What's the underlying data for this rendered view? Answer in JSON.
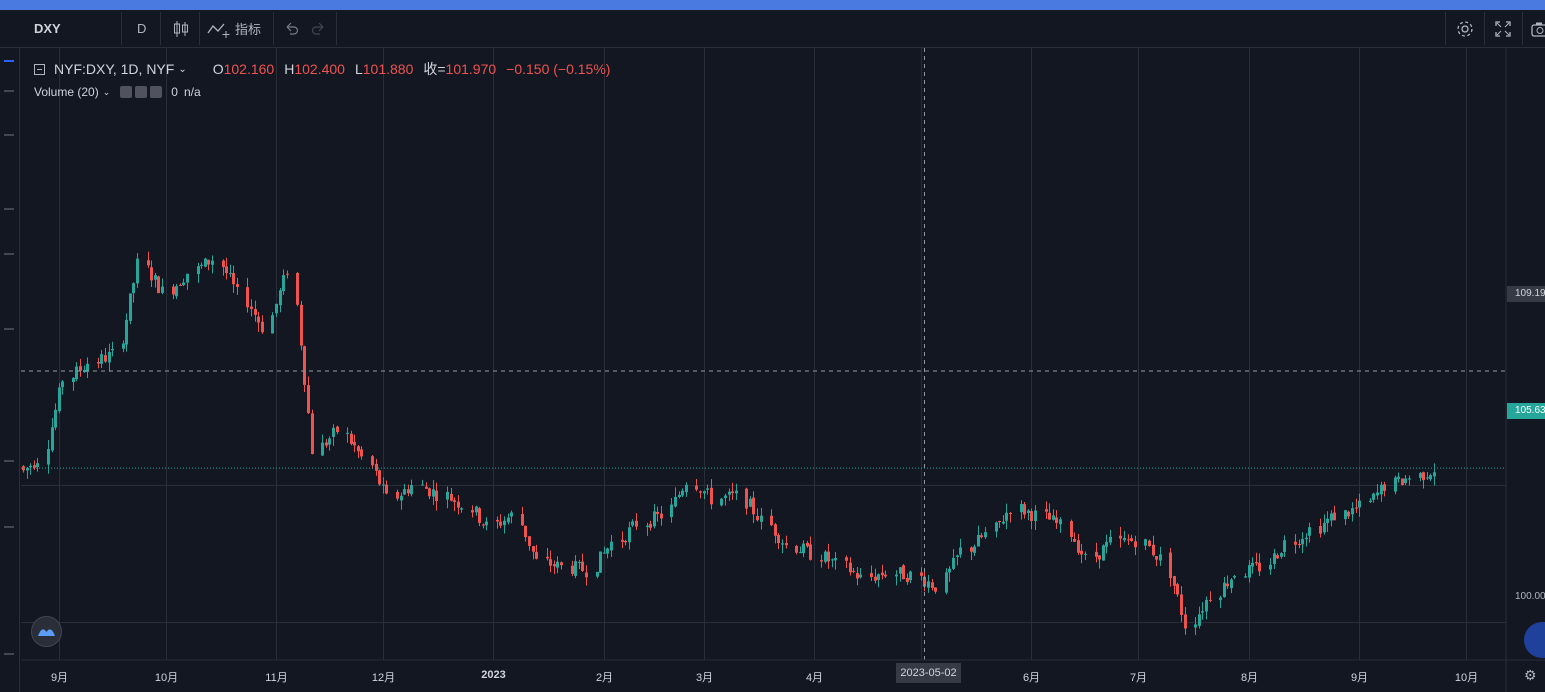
{
  "toolbar": {
    "symbol": "DXY",
    "interval": "D",
    "indicators_label": "指标"
  },
  "legend": {
    "symbol_desc": "NYF:DXY, 1D, NYF",
    "o_label": "O",
    "o_value": "102.160",
    "h_label": "H",
    "h_value": "102.400",
    "l_label": "L",
    "l_value": "101.880",
    "c_label": "收=",
    "c_value": "101.970",
    "change": "−0.150 (−0.15%)"
  },
  "volume": {
    "label": "Volume (20)",
    "value": "0",
    "na": "n/a"
  },
  "price_axis": {
    "crosshair_price": "109.19",
    "last_price": "105.63",
    "level_100": "100.00"
  },
  "time_axis": {
    "labels": [
      "9月",
      "10月",
      "11月",
      "12月",
      "2023",
      "2月",
      "3月",
      "4月",
      "5月",
      "6月",
      "7月",
      "8月",
      "9月",
      "10月"
    ],
    "crosshair_date": "2023-05-02"
  },
  "colors": {
    "background": "#131722",
    "up": "#26a69a",
    "down": "#ef5350",
    "grid": "#2a2e39",
    "accent": "#2962ff"
  },
  "icons": [
    "candles-icon",
    "indicators-icon",
    "undo-icon",
    "redo-icon",
    "settings-icon",
    "fullscreen-icon",
    "camera-icon",
    "logo-icon",
    "gear-icon"
  ],
  "chart_data": {
    "type": "candlestick",
    "ylim": [
      98.6,
      118.9
    ],
    "x": [
      "2022-08-22",
      "2022-08-29",
      "2022-09-05",
      "2022-09-12",
      "2022-09-19",
      "2022-09-26",
      "2022-10-03",
      "2022-10-10",
      "2022-10-17",
      "2022-10-24",
      "2022-10-31",
      "2022-11-07",
      "2022-11-14",
      "2022-11-21",
      "2022-11-28",
      "2022-12-05",
      "2022-12-12",
      "2022-12-19",
      "2022-12-26",
      "2023-01-02",
      "2023-01-09",
      "2023-01-16",
      "2023-01-23",
      "2023-01-30",
      "2023-02-06",
      "2023-02-13",
      "2023-02-20",
      "2023-02-27",
      "2023-03-06",
      "2023-03-13",
      "2023-03-20",
      "2023-03-27",
      "2023-04-03",
      "2023-04-10",
      "2023-04-17",
      "2023-04-24",
      "2023-05-01",
      "2023-05-08",
      "2023-05-15",
      "2023-05-22",
      "2023-05-29",
      "2023-06-05",
      "2023-06-12",
      "2023-06-19",
      "2023-06-26",
      "2023-07-03",
      "2023-07-10",
      "2023-07-17",
      "2023-07-24",
      "2023-07-31",
      "2023-08-07",
      "2023-08-14",
      "2023-08-21",
      "2023-08-28",
      "2023-09-04",
      "2023-09-11",
      "2023-09-18"
    ],
    "close": [
      106.0,
      108.9,
      109.5,
      109.8,
      113.1,
      112.1,
      112.8,
      113.3,
      112.0,
      110.8,
      112.9,
      106.3,
      107.0,
      106.0,
      104.5,
      105.0,
      104.7,
      104.3,
      103.5,
      103.9,
      102.2,
      102.0,
      101.9,
      102.9,
      103.6,
      103.9,
      105.2,
      104.5,
      104.6,
      103.7,
      102.8,
      102.5,
      102.1,
      101.6,
      101.8,
      101.7,
      101.3,
      102.6,
      103.2,
      104.2,
      103.9,
      103.5,
      102.3,
      102.9,
      103.0,
      102.3,
      99.9,
      101.0,
      101.8,
      102.0,
      102.9,
      103.4,
      103.9,
      104.2,
      105.0,
      105.3,
      105.6
    ],
    "current": {
      "open": 102.16,
      "high": 102.4,
      "low": 101.88,
      "close": 101.97,
      "change": -0.15,
      "change_pct": -0.15
    }
  }
}
